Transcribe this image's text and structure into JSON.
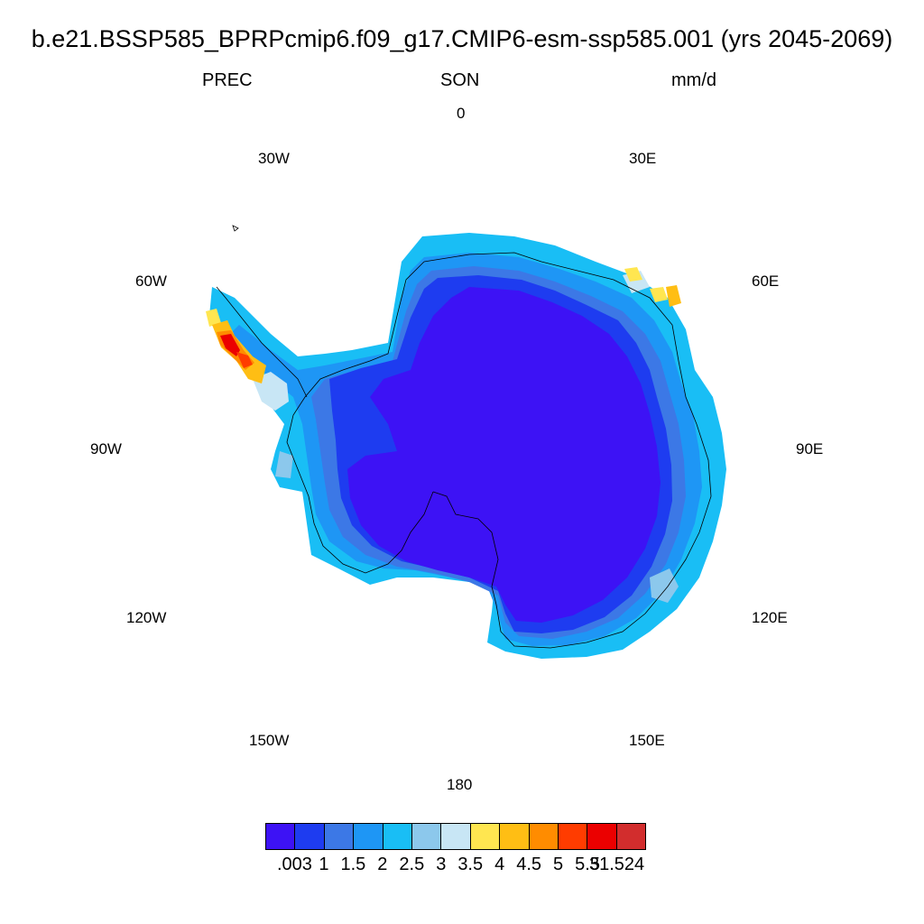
{
  "title": "b.e21.BSSP585_BPRPcmip6.f09_g17.CMIP6-esm-ssp585.001 (yrs 2045-2069)",
  "left_string": "PREC",
  "center_string": "SON",
  "right_string": "mm/d",
  "longitude_labels": {
    "lon_0": "0",
    "lon_30e": "30E",
    "lon_60e": "60E",
    "lon_90e": "90E",
    "lon_120e": "120E",
    "lon_150e": "150E",
    "lon_180": "180",
    "lon_150w": "150W",
    "lon_120w": "120W",
    "lon_90w": "90W",
    "lon_60w": "60W",
    "lon_30w": "30W"
  },
  "colorbar": {
    "colors": [
      "#3d12f5",
      "#1e3cf0",
      "#3c78e6",
      "#1e96f5",
      "#19bef5",
      "#8cc8ec",
      "#c8e6f5",
      "#ffe650",
      "#ffbe14",
      "#ff8c00",
      "#ff3c00",
      "#eb0000",
      "#d22d2d"
    ],
    "labels": [
      ".003",
      "1",
      "1.5",
      "2",
      "2.5",
      "3",
      "3.5",
      "4",
      "4.5",
      "5",
      "5.5",
      "31.524"
    ]
  },
  "map": {
    "projection": "south-polar-stereographic",
    "variable": "precipitation",
    "season": "SON",
    "units": "mm/d",
    "interior_color": "#3d12f5",
    "coast_gradient": [
      "#1e3cf0",
      "#3c78e6",
      "#1e96f5",
      "#19bef5"
    ],
    "peninsula_max_colors": [
      "#ffe650",
      "#ffbe14",
      "#ff8c00",
      "#ff3c00",
      "#eb0000"
    ],
    "east_coast_hotspot_colors": [
      "#ffe650",
      "#ffbe14"
    ]
  }
}
